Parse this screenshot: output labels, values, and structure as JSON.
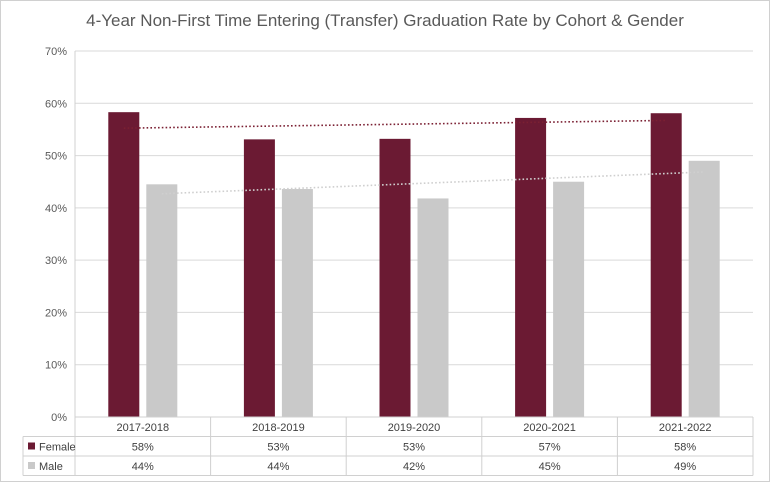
{
  "chart_data": {
    "type": "bar",
    "title": "4-Year Non-First Time Entering (Transfer) Graduation Rate by Cohort & Gender",
    "categories": [
      "2017-2018",
      "2018-2019",
      "2019-2020",
      "2020-2021",
      "2021-2022"
    ],
    "series": [
      {
        "name": "Female",
        "values": [
          58.3,
          53.1,
          53.2,
          57.2,
          58.1
        ],
        "labels": [
          "58%",
          "53%",
          "53%",
          "57%",
          "58%"
        ],
        "color": "#6b1a33"
      },
      {
        "name": "Male",
        "values": [
          44.5,
          43.6,
          41.8,
          45.0,
          49.0
        ],
        "labels": [
          "44%",
          "44%",
          "42%",
          "45%",
          "49%"
        ],
        "color": "#c9c9c9"
      }
    ],
    "trendlines": [
      {
        "series": "Female",
        "type": "linear",
        "color": "#7b2033"
      },
      {
        "series": "Male",
        "type": "linear",
        "color": "#cfcfcf"
      }
    ],
    "ylim": [
      0,
      70
    ],
    "yticks": [
      "0%",
      "10%",
      "20%",
      "30%",
      "40%",
      "50%",
      "60%",
      "70%"
    ],
    "xlabel": "",
    "ylabel": "",
    "grid": true,
    "legend": "data-table"
  }
}
